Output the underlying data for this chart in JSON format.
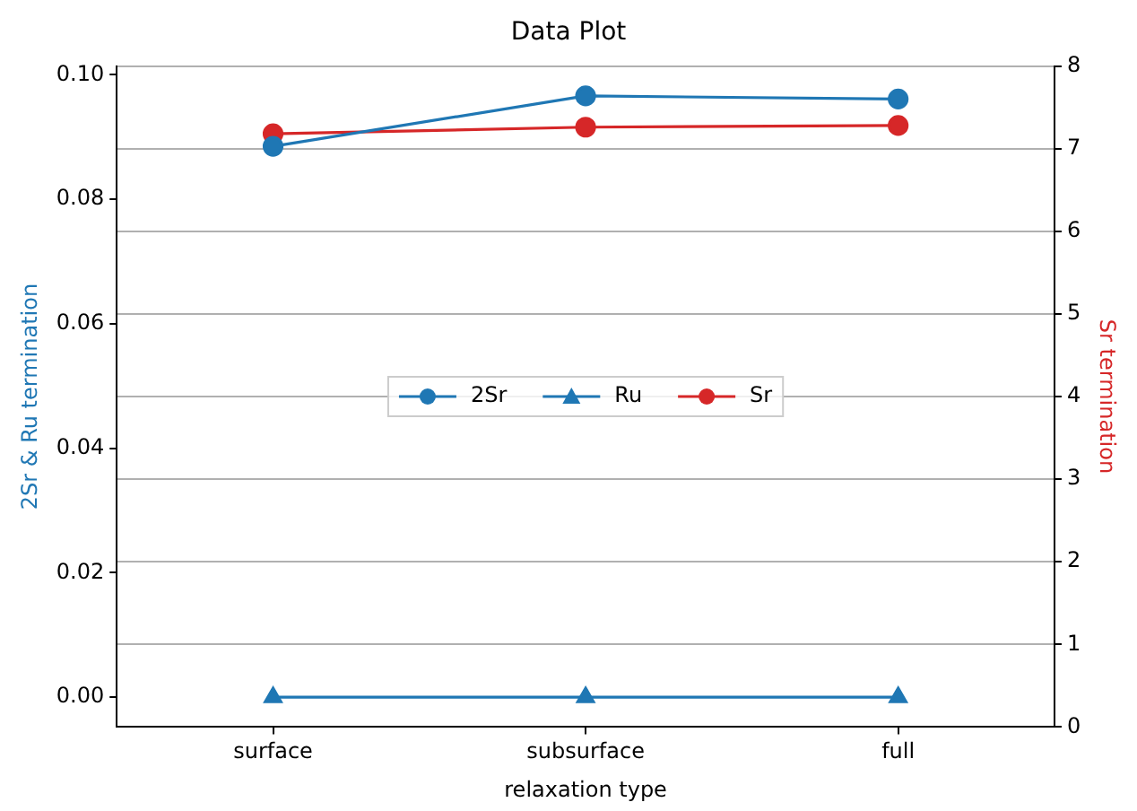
{
  "chart_data": {
    "type": "line",
    "title": "Data Plot",
    "xlabel": "relaxation type",
    "ylabel": "2Sr & Ru termination",
    "y2label": "Sr termination",
    "categories": [
      "surface",
      "subsurface",
      "full"
    ],
    "series": [
      {
        "name": "2Sr",
        "color": "#1f77b4",
        "marker": "circle",
        "values": [
          0.0885,
          0.0966,
          0.0961
        ]
      },
      {
        "name": "Ru",
        "color": "#1f77b4",
        "marker": "triangle",
        "values": [
          0,
          0,
          0
        ]
      },
      {
        "name": "Sr",
        "color": "#d62728",
        "marker": "circle",
        "axis": "y2",
        "values": [
          7.18,
          7.26,
          7.28
        ]
      }
    ],
    "ylim": [
      -0.0048,
      0.1014
    ],
    "yticks": [
      {
        "value": 0,
        "label": "0.00"
      },
      {
        "value": 0.02,
        "label": "0.02"
      },
      {
        "value": 0.04,
        "label": "0.04"
      },
      {
        "value": 0.06,
        "label": "0.06"
      },
      {
        "value": 0.08,
        "label": "0.08"
      },
      {
        "value": 0.1,
        "label": "0.10"
      }
    ],
    "y2lim": [
      0,
      8
    ],
    "y2ticks": [
      0,
      1,
      2,
      3,
      4,
      5,
      6,
      7,
      8
    ],
    "grid": "y",
    "legend": "center"
  }
}
